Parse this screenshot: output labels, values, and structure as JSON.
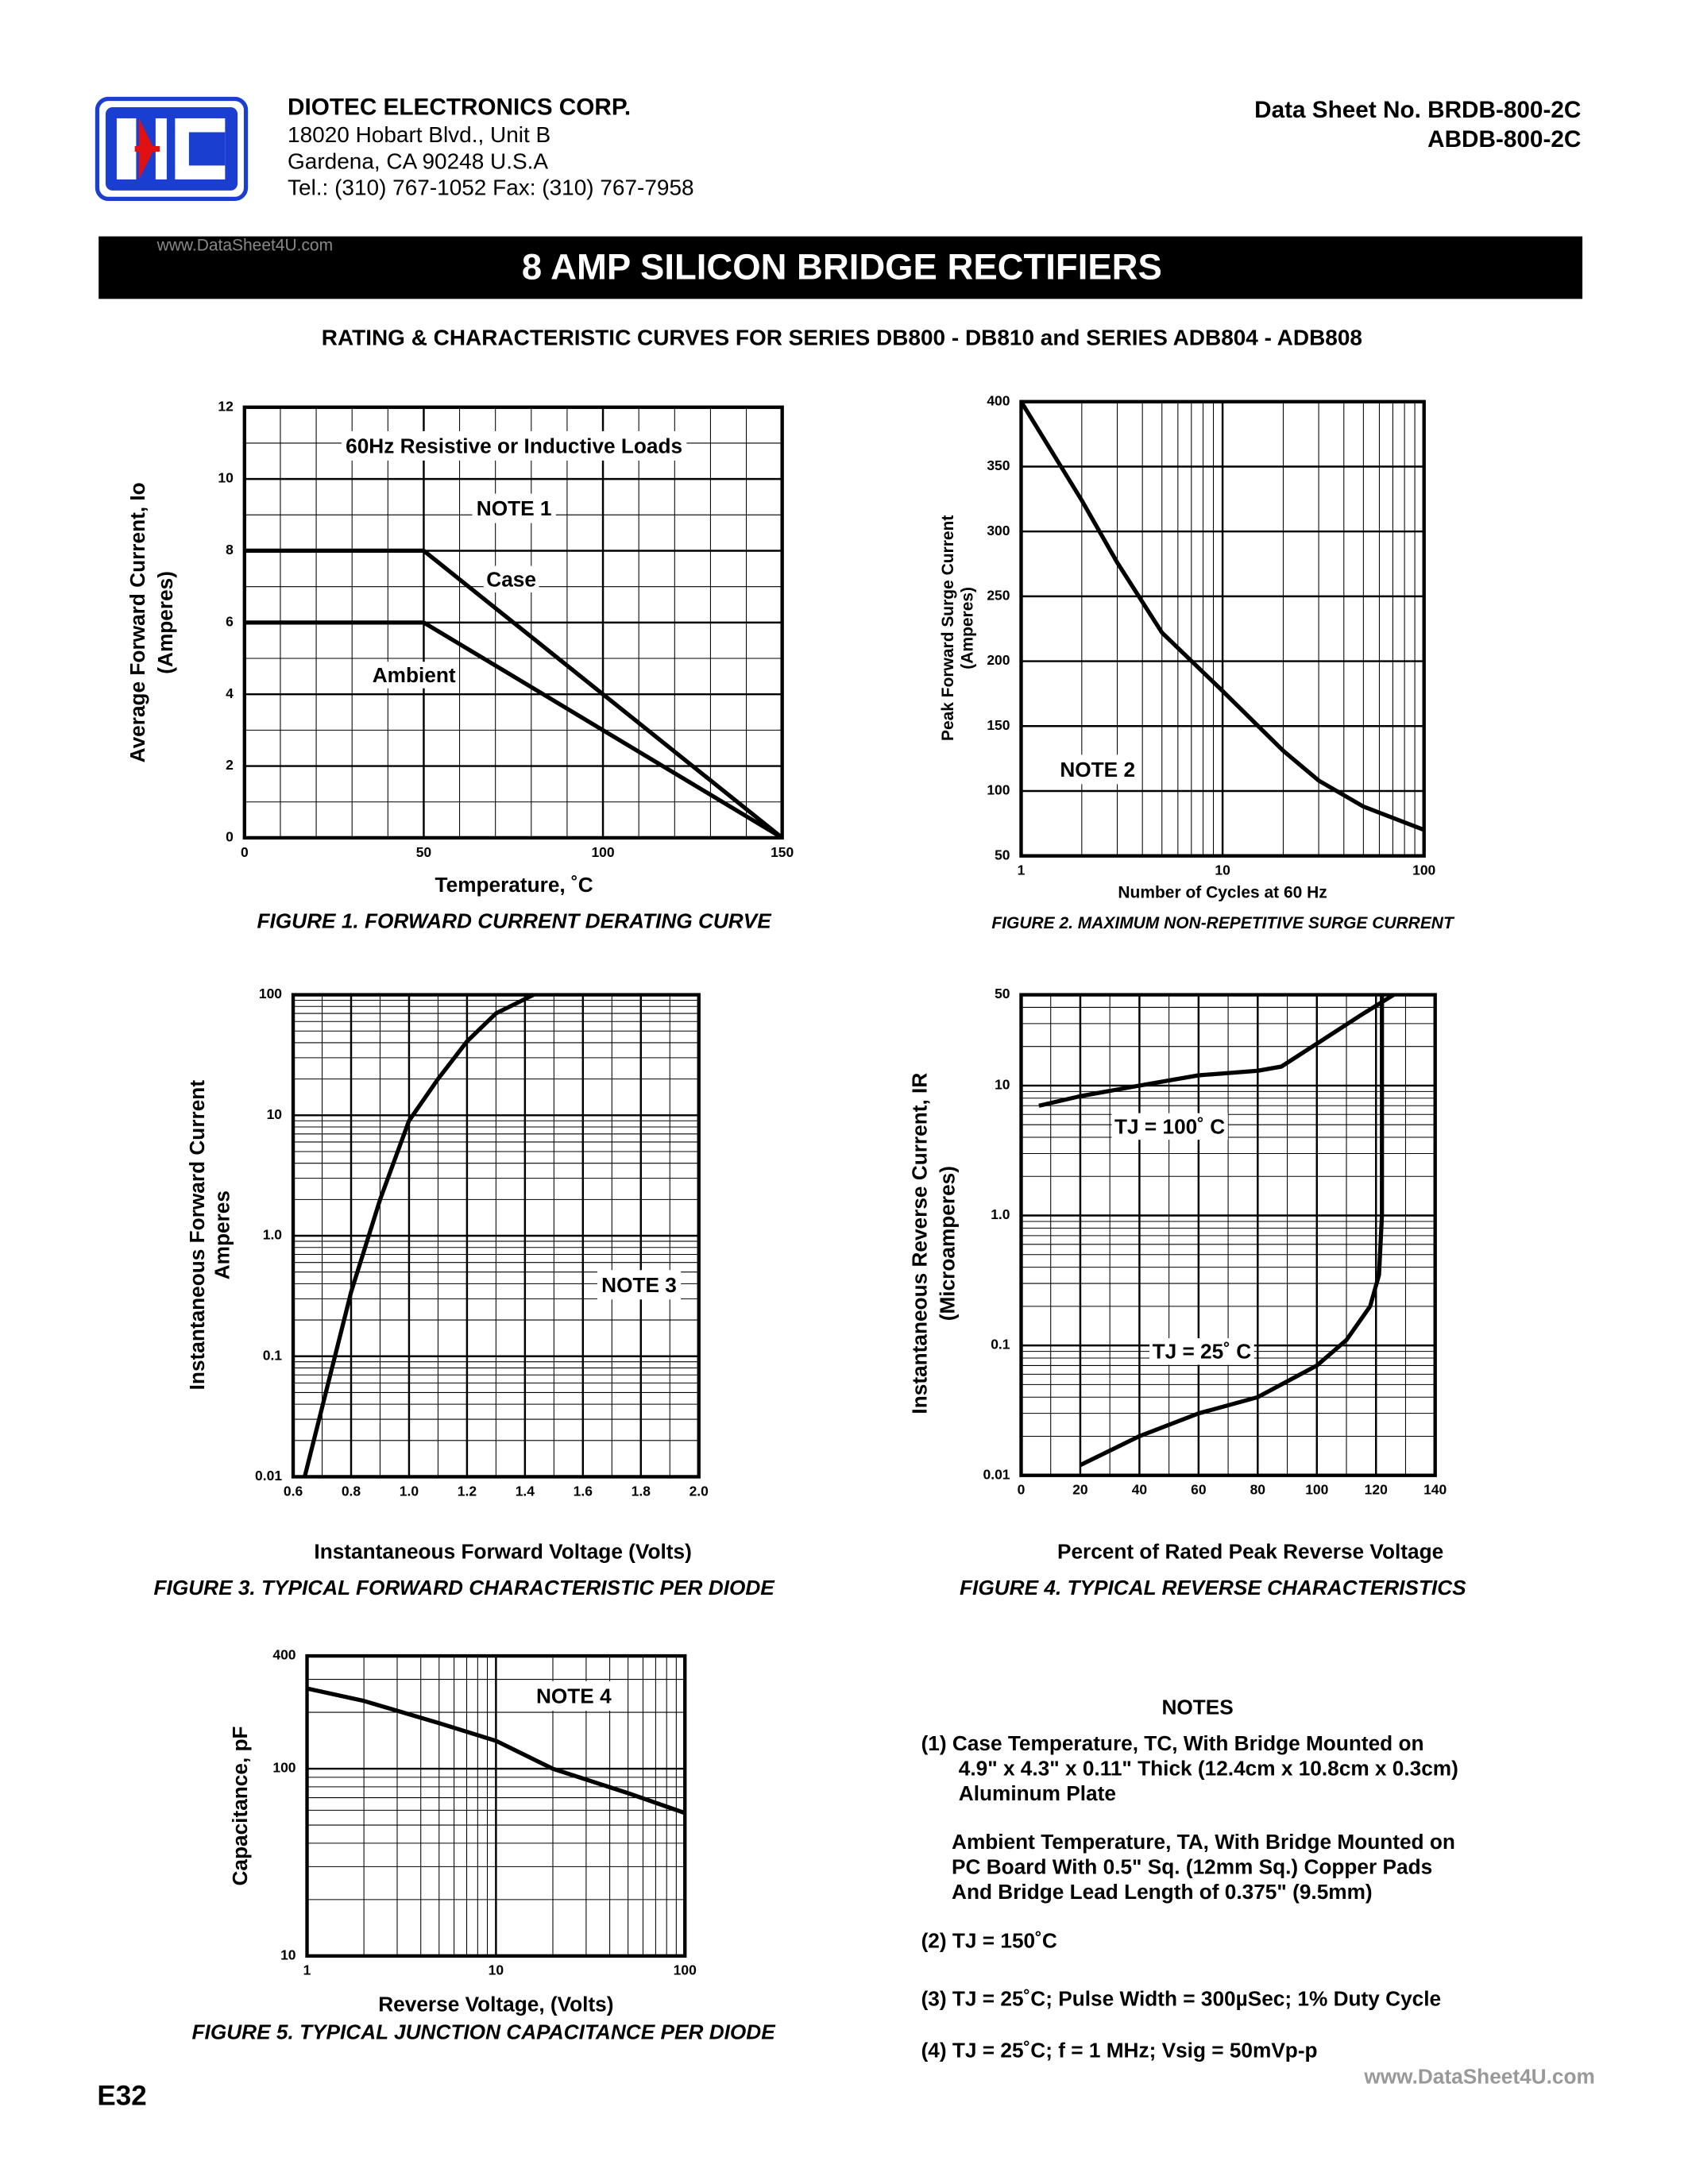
{
  "header": {
    "company": "DIOTEC   ELECTRONICS   CORP.",
    "address": [
      "18020 Hobart Blvd.,  Unit B",
      "Gardena, CA  90248    U.S.A",
      "Tel.:  (310) 767-1052     Fax:  (310) 767-7958"
    ],
    "datasheet": [
      "Data Sheet No.  BRDB-800-2C",
      "ABDB-800-2C"
    ],
    "watermark": "www.DataSheet4U.com"
  },
  "title": "8 AMP SILICON BRIDGE RECTIFIERS",
  "subtitle": "RATING & CHARACTERISTIC CURVES FOR SERIES DB800 - DB810 and SERIES ADB804 - ADB808",
  "chart_data": [
    {
      "type": "line",
      "title": "FIGURE 1.  FORWARD CURRENT DERATING CURVE",
      "xlabel": "Temperature, ˚C",
      "ylabel": [
        "Average Forward Current, Io",
        "(Amperes)"
      ],
      "annotations": [
        "60Hz Resistive or Inductive Loads",
        "NOTE 1"
      ],
      "xlim": [
        0,
        150
      ],
      "ylim": [
        0,
        12
      ],
      "xticks": [
        0,
        50,
        100,
        150
      ],
      "yticks": [
        0,
        2,
        4,
        6,
        8,
        10,
        12
      ],
      "grid": true,
      "series": [
        {
          "name": "Case",
          "color": "#000000",
          "x": [
            0,
            50,
            150
          ],
          "values": [
            8,
            8,
            0
          ]
        },
        {
          "name": "Ambient",
          "color": "#000000",
          "x": [
            0,
            50,
            150
          ],
          "values": [
            6,
            6,
            0
          ]
        }
      ]
    },
    {
      "type": "line",
      "title": "FIGURE 2.  MAXIMUM NON-REPETITIVE SURGE CURRENT",
      "xlabel": "Number of Cycles at 60 Hz",
      "ylabel": [
        "Peak Forward Surge Current",
        "(Amperes)"
      ],
      "annotations": [
        "NOTE 2"
      ],
      "xlog": true,
      "xlim": [
        1,
        100
      ],
      "ylim": [
        50,
        400
      ],
      "xticks": [
        1,
        10,
        100
      ],
      "yticks": [
        50,
        100,
        150,
        200,
        250,
        300,
        350,
        400
      ],
      "grid": true,
      "series": [
        {
          "name": null,
          "color": "#000000",
          "x": [
            1,
            2,
            3,
            5,
            10,
            20,
            30,
            50,
            100
          ],
          "values": [
            400,
            324,
            276,
            222,
            177,
            131,
            108,
            88,
            70
          ]
        }
      ]
    },
    {
      "type": "line",
      "title": "FIGURE 3.  TYPICAL FORWARD CHARACTERISTIC PER DIODE",
      "xlabel": "Instantaneous Forward Voltage (Volts)",
      "ylabel": [
        "Instantaneous Forward Current",
        "Amperes"
      ],
      "annotations": [
        "NOTE 3"
      ],
      "ylog": true,
      "xlim": [
        0.6,
        2
      ],
      "ylim": [
        0.01,
        100
      ],
      "xticks": [
        0.6,
        0.8,
        {
          "value": 1,
          "label": "1.0"
        },
        1.2,
        1.4,
        1.6,
        1.8,
        {
          "value": 2,
          "label": "2.0"
        }
      ],
      "yticks": [
        0.01,
        0.1,
        {
          "value": 1,
          "label": "1.0"
        },
        10,
        100
      ],
      "grid": true,
      "series": [
        {
          "name": null,
          "color": "#000000",
          "x": [
            0.64,
            0.8,
            0.9,
            1.0,
            1.1,
            1.2,
            1.3,
            1.43
          ],
          "values": [
            0.01,
            0.34,
            2,
            9,
            20,
            41,
            70,
            100
          ]
        }
      ]
    },
    {
      "type": "line",
      "title": "FIGURE 4.  TYPICAL REVERSE CHARACTERISTICS",
      "xlabel": "Percent of Rated Peak Reverse Voltage",
      "ylabel": [
        "Instantaneous Reverse Current, IR",
        "(Microamperes)"
      ],
      "annotations": [],
      "ylog": true,
      "xlim": [
        0,
        140
      ],
      "ylim": [
        0.01,
        50
      ],
      "xticks": [
        0,
        20,
        40,
        60,
        80,
        100,
        120,
        140
      ],
      "yticks": [
        0.01,
        0.1,
        {
          "value": 1,
          "label": "1.0"
        },
        10,
        50
      ],
      "grid": true,
      "series": [
        {
          "name": "TJ = 100˚ C",
          "color": "#000000",
          "x": [
            6,
            20,
            40,
            60,
            80,
            88,
            100,
            115,
            126
          ],
          "values": [
            7,
            8.3,
            10,
            12,
            13,
            14,
            21,
            35,
            50
          ]
        },
        {
          "name": "TJ = 25˚ C",
          "color": "#000000",
          "x": [
            20,
            40,
            60,
            80,
            100,
            110,
            118,
            121,
            122,
            122
          ],
          "values": [
            0.012,
            0.02,
            0.03,
            0.04,
            0.07,
            0.11,
            0.2,
            0.35,
            1,
            50
          ]
        }
      ]
    },
    {
      "type": "line",
      "title": "FIGURE 5.  TYPICAL JUNCTION CAPACITANCE PER DIODE",
      "xlabel": "Reverse Voltage, (Volts)",
      "ylabel": [
        "Capacitance, pF"
      ],
      "annotations": [
        "NOTE 4"
      ],
      "xlog": true,
      "ylog": true,
      "xlim": [
        1,
        100
      ],
      "ylim": [
        10,
        400
      ],
      "xticks": [
        1,
        10,
        100
      ],
      "yticks": [
        10,
        100,
        400
      ],
      "grid": true,
      "series": [
        {
          "name": null,
          "color": "#000000",
          "x": [
            1,
            2,
            5,
            10,
            20,
            50,
            100
          ],
          "values": [
            268,
            230,
            175,
            141,
            100,
            74,
            58
          ]
        }
      ]
    }
  ],
  "notes": {
    "heading": "NOTES",
    "lines": [
      "(1) Case Temperature, TC, With Bridge Mounted on",
      "4.9\" x 4.3\" x 0.11\" Thick (12.4cm x 10.8cm x 0.3cm)",
      "Aluminum Plate",
      "Ambient Temperature, TA, With Bridge Mounted on",
      "PC Board With 0.5\" Sq. (12mm Sq.) Copper Pads",
      "And Bridge Lead Length of 0.375\" (9.5mm)",
      "(2) TJ = 150˚C",
      "(3) TJ = 25˚C; Pulse Width = 300µSec; 1% Duty Cycle",
      "(4) TJ = 25˚C; f = 1 MHz; Vsig = 50mVp-p"
    ]
  },
  "page": "E32"
}
